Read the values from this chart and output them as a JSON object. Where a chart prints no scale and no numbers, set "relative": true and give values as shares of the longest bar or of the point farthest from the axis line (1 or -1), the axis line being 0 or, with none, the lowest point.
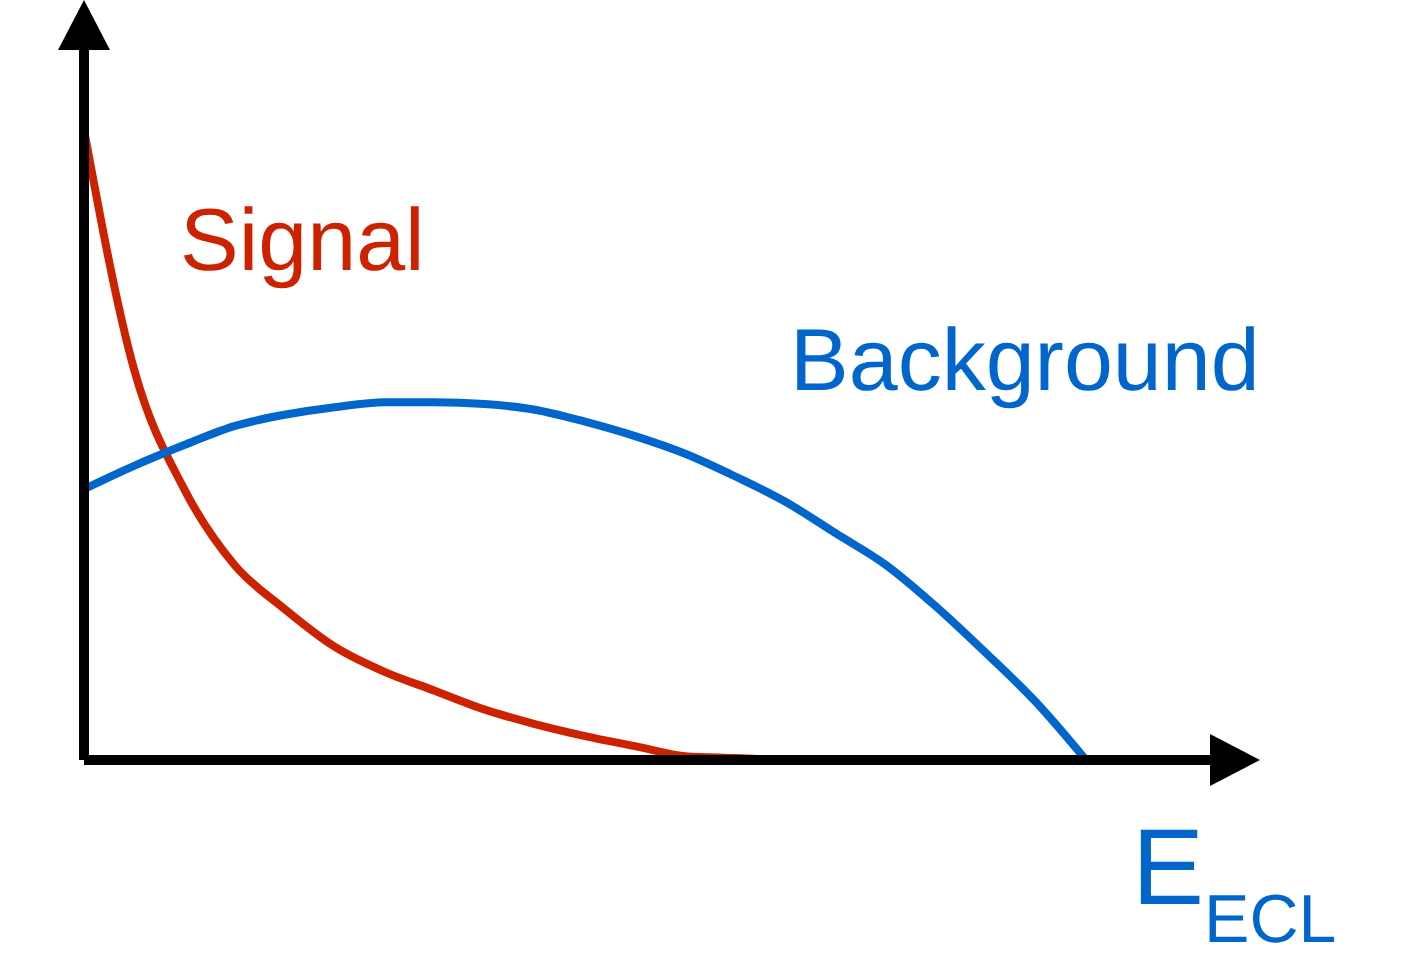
{
  "chart_data": {
    "type": "line",
    "relative": true,
    "xlabel": "E$_{ECL}$",
    "categories": [
      null,
      null,
      null,
      null,
      null,
      null,
      null,
      null,
      null,
      null,
      null,
      null,
      null,
      null,
      null,
      null,
      null,
      null,
      null,
      null,
      null
    ],
    "series": [
      {
        "name": "Signal",
        "color": "#cc2200",
        "values": [
          1.0,
          0.62,
          0.43,
          0.31,
          0.24,
          0.18,
          0.14,
          0.11,
          0.08,
          0.057,
          0.038,
          0.022,
          0.006,
          0.003,
          0,
          null,
          null,
          null,
          null,
          null,
          null
        ]
      },
      {
        "name": "Background",
        "color": "#0066cc",
        "values": [
          0.43,
          0.467,
          0.5,
          0.53,
          0.548,
          0.56,
          0.568,
          0.568,
          0.565,
          0.556,
          0.537,
          0.514,
          0.486,
          0.45,
          0.41,
          0.36,
          0.31,
          0.244,
          0.17,
          0.092,
          0
        ]
      }
    ],
    "marker": "none",
    "line_style": "solid"
  }
}
